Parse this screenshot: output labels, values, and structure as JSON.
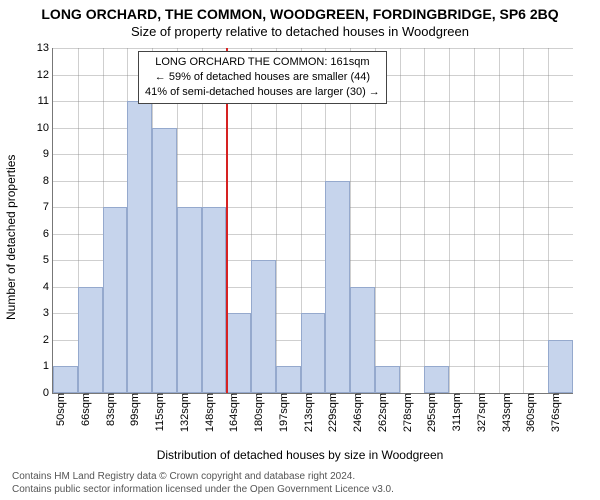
{
  "title": "LONG ORCHARD, THE COMMON, WOODGREEN, FORDINGBRIDGE, SP6 2BQ",
  "subtitle": "Size of property relative to detached houses in Woodgreen",
  "ylabel": "Number of detached properties",
  "xlabel": "Distribution of detached houses by size in Woodgreen",
  "footer_line1": "Contains HM Land Registry data © Crown copyright and database right 2024.",
  "footer_line2": "Contains public sector information licensed under the Open Government Licence v3.0.",
  "chart": {
    "type": "histogram",
    "ymin": 0,
    "ymax": 13,
    "ytick_step": 1,
    "x_categories": [
      "50sqm",
      "66sqm",
      "83sqm",
      "99sqm",
      "115sqm",
      "132sqm",
      "148sqm",
      "164sqm",
      "180sqm",
      "197sqm",
      "213sqm",
      "229sqm",
      "246sqm",
      "262sqm",
      "278sqm",
      "295sqm",
      "311sqm",
      "327sqm",
      "343sqm",
      "360sqm",
      "376sqm"
    ],
    "values": [
      1,
      4,
      7,
      11,
      10,
      7,
      7,
      3,
      5,
      1,
      3,
      8,
      4,
      1,
      0,
      1,
      0,
      0,
      0,
      0,
      2
    ],
    "bar_fill": "#c6d4ec",
    "bar_border": "#95a9cd",
    "grid_color": "#888888",
    "background_color": "#ffffff",
    "marker": {
      "at_category": "164sqm",
      "color": "#d62222"
    },
    "annotation": {
      "line1": "LONG ORCHARD THE COMMON: 161sqm",
      "line2": "← 59% of detached houses are smaller (44)",
      "line3": "41% of semi-detached houses are larger (30) →"
    },
    "title_fontsize": 14,
    "subtitle_fontsize": 13,
    "label_fontsize": 12,
    "tick_fontsize": 11,
    "anno_fontsize": 11
  }
}
